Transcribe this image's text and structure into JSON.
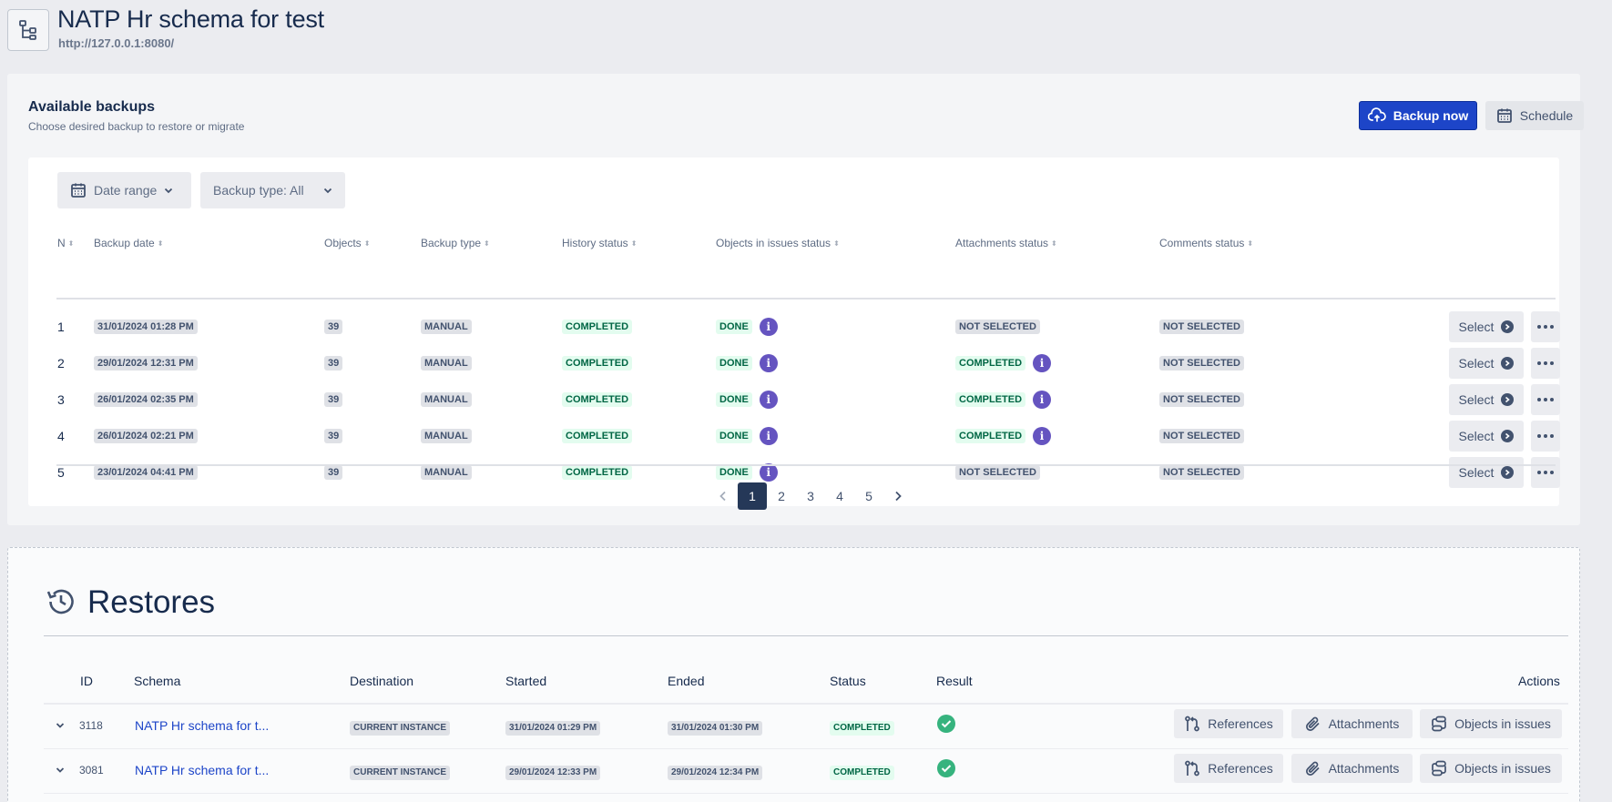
{
  "header": {
    "title": "NATP Hr schema for test",
    "url": "http://127.0.0.1:8080/",
    "icon": "schema-tree-icon"
  },
  "backups": {
    "title": "Available backups",
    "subtitle": "Choose desired backup to restore or migrate",
    "backup_now_label": "Backup now",
    "schedule_label": "Schedule",
    "filters": {
      "date_range_label": "Date range",
      "backup_type_label": "Backup type: All"
    },
    "columns": [
      "N",
      "Backup date",
      "Objects",
      "Backup type",
      "History status",
      "Objects in issues status",
      "Attachments status",
      "Comments status"
    ],
    "select_label": "Select",
    "rows": [
      {
        "n": "1",
        "date": "31/01/2024 01:28 PM",
        "objects": "39",
        "type": "MANUAL",
        "history": "COMPLETED",
        "issues": "DONE",
        "attachments": "NOT SELECTED",
        "attachments_info": false,
        "comments": "NOT SELECTED"
      },
      {
        "n": "2",
        "date": "29/01/2024 12:31 PM",
        "objects": "39",
        "type": "MANUAL",
        "history": "COMPLETED",
        "issues": "DONE",
        "attachments": "COMPLETED",
        "attachments_info": true,
        "comments": "NOT SELECTED"
      },
      {
        "n": "3",
        "date": "26/01/2024 02:35 PM",
        "objects": "39",
        "type": "MANUAL",
        "history": "COMPLETED",
        "issues": "DONE",
        "attachments": "COMPLETED",
        "attachments_info": true,
        "comments": "NOT SELECTED"
      },
      {
        "n": "4",
        "date": "26/01/2024 02:21 PM",
        "objects": "39",
        "type": "MANUAL",
        "history": "COMPLETED",
        "issues": "DONE",
        "attachments": "COMPLETED",
        "attachments_info": true,
        "comments": "NOT SELECTED"
      },
      {
        "n": "5",
        "date": "23/01/2024 04:41 PM",
        "objects": "39",
        "type": "MANUAL",
        "history": "COMPLETED",
        "issues": "DONE",
        "attachments": "NOT SELECTED",
        "attachments_info": false,
        "comments": "NOT SELECTED"
      }
    ],
    "pagination": {
      "pages": [
        "1",
        "2",
        "3",
        "4",
        "5"
      ],
      "current": "1"
    }
  },
  "restores": {
    "title": "Restores",
    "columns": [
      "ID",
      "Schema",
      "Destination",
      "Started",
      "Ended",
      "Status",
      "Result",
      "Actions"
    ],
    "actions": {
      "references": "References",
      "attachments": "Attachments",
      "objects_in_issues": "Objects in issues"
    },
    "rows": [
      {
        "id": "3118",
        "schema": "NATP Hr schema for t...",
        "destination": "CURRENT INSTANCE",
        "started": "31/01/2024 01:29 PM",
        "ended": "31/01/2024 01:30 PM",
        "status": "COMPLETED"
      },
      {
        "id": "3081",
        "schema": "NATP Hr schema for t...",
        "destination": "CURRENT INSTANCE",
        "started": "29/01/2024 12:33 PM",
        "ended": "29/01/2024 12:34 PM",
        "status": "COMPLETED"
      }
    ]
  },
  "colors": {
    "primary": "#1d45c8",
    "info": "#6554c0",
    "success": "#36b37e",
    "dark": "#253858"
  }
}
